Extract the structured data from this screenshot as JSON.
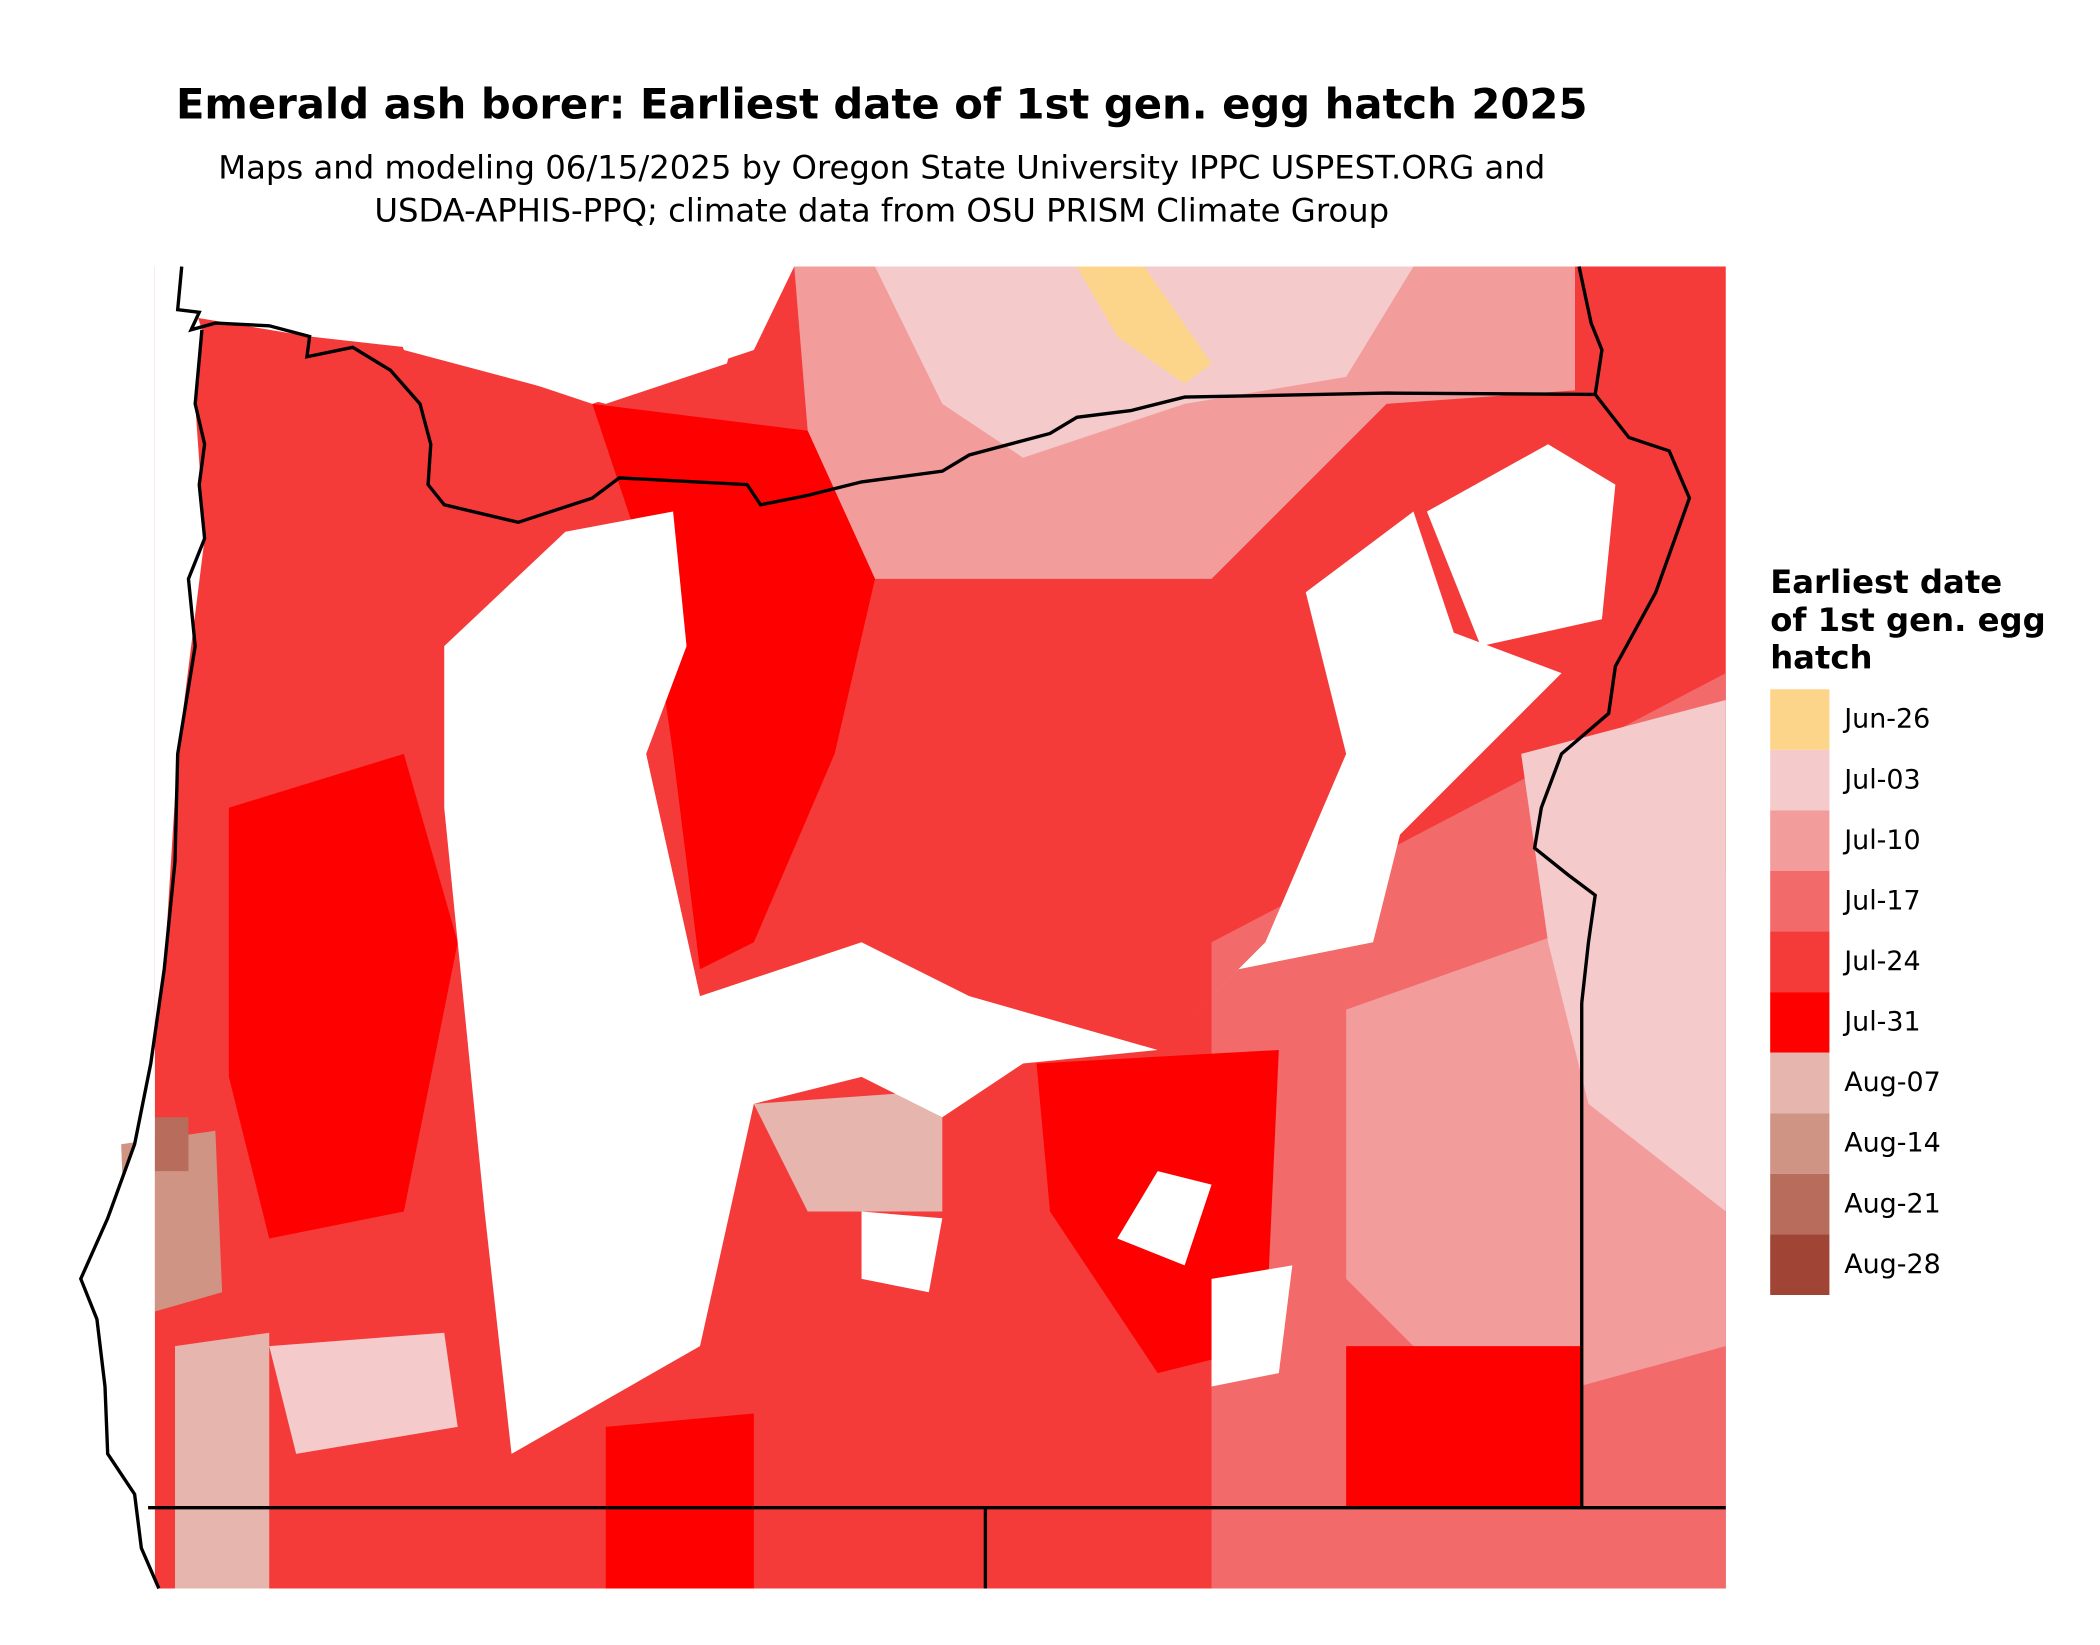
{
  "header": {
    "title": "Emerald ash borer: Earliest date of 1st gen. egg hatch 2025",
    "subtitle": [
      "Maps and modeling 06/15/2025 by Oregon State University IPPC USPEST.ORG and",
      "USDA-APHIS-PPQ; climate data from OSU PRISM Climate Group"
    ]
  },
  "legend": {
    "title": [
      "Earliest date",
      "of 1st gen. egg",
      "hatch"
    ],
    "items": [
      {
        "label": "Jun-26",
        "color": "#fdd58a"
      },
      {
        "label": "Jul-03",
        "color": "#f4cacb"
      },
      {
        "label": "Jul-10",
        "color": "#f29c9c"
      },
      {
        "label": "Jul-17",
        "color": "#f26a6a"
      },
      {
        "label": "Jul-24",
        "color": "#f53a3a"
      },
      {
        "label": "Jul-31",
        "color": "#ff0000"
      },
      {
        "label": "Aug-07",
        "color": "#e6b5ad"
      },
      {
        "label": "Aug-14",
        "color": "#cf9484"
      },
      {
        "label": "Aug-21",
        "color": "#b86c5c"
      },
      {
        "label": "Aug-28",
        "color": "#a04535"
      }
    ]
  }
}
